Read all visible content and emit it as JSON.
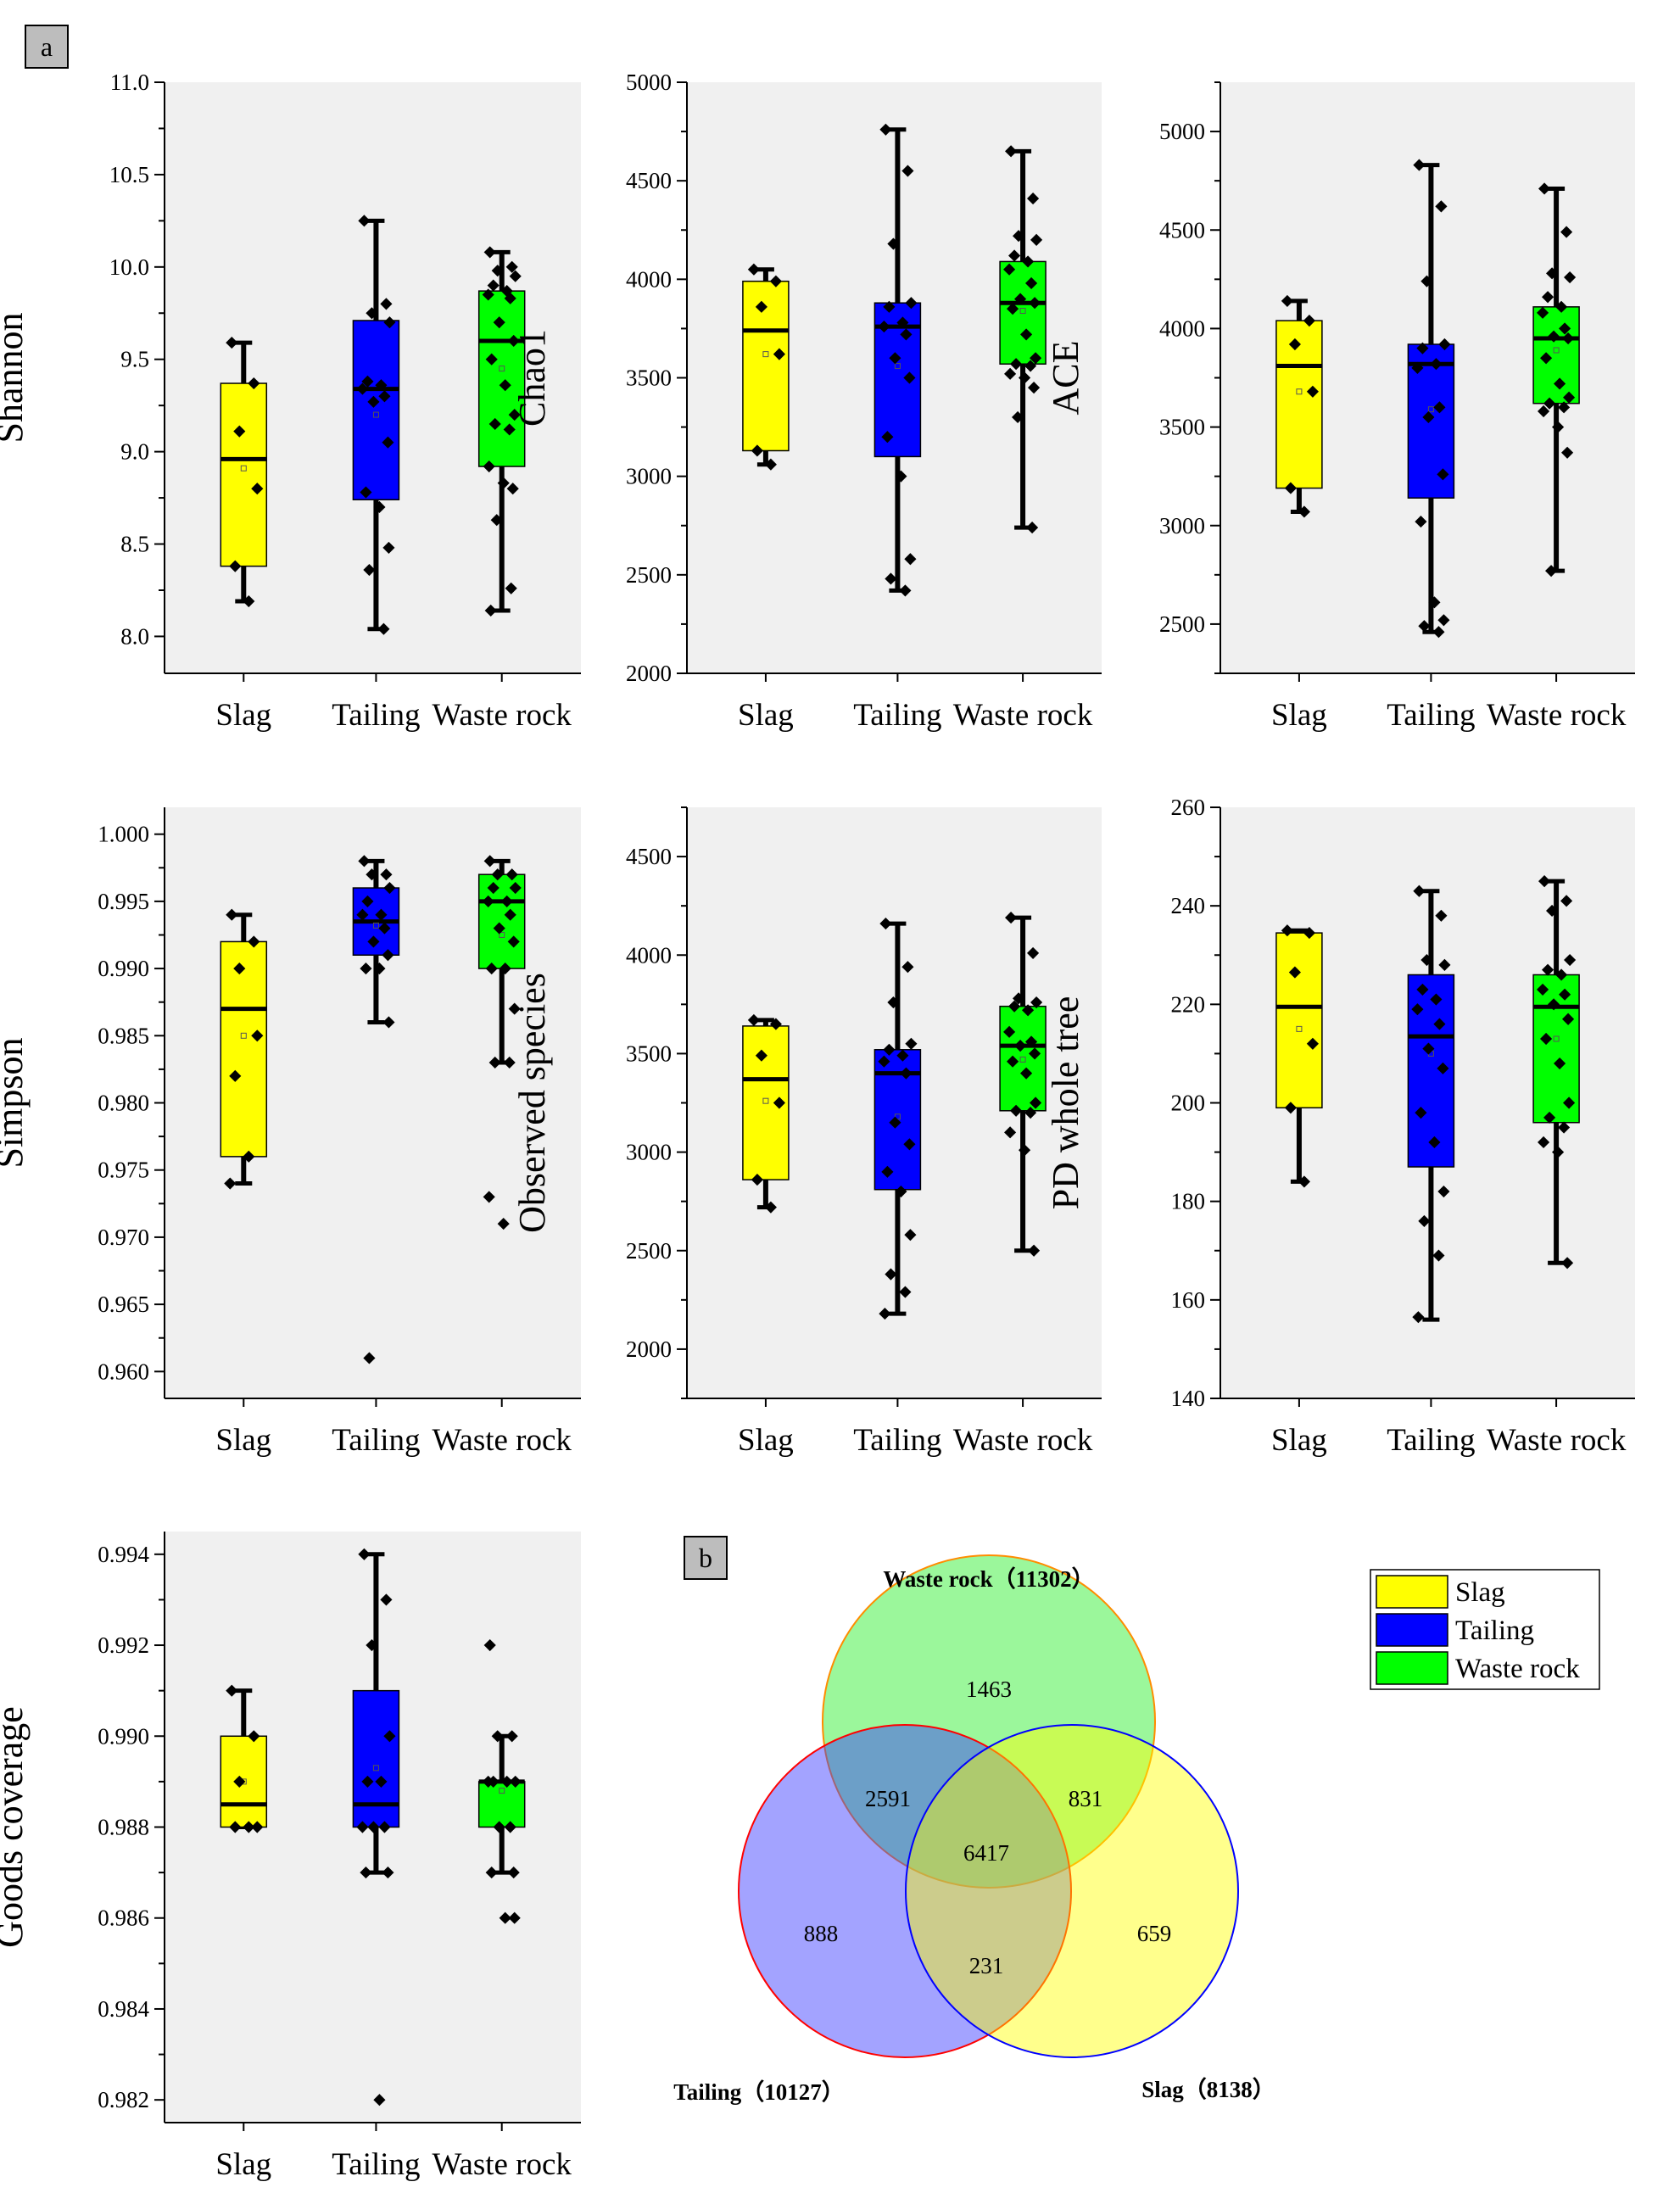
{
  "panel_labels": {
    "a": "a",
    "b": "b"
  },
  "colors": {
    "Slag": "#ffff00",
    "Tailing": "#0000ff",
    "Waste rock": "#00ff00",
    "plot_bg": "#f0f0f0"
  },
  "chart_data": [
    {
      "id": "shannon",
      "type": "box",
      "ylabel": "Shannon",
      "categories": [
        "Slag",
        "Tailing",
        "Waste rock"
      ],
      "ylim": [
        7.8,
        11.0
      ],
      "yticks": [
        8.0,
        8.5,
        9.0,
        9.5,
        10.0,
        10.5,
        11.0
      ],
      "tick_decimals": 1,
      "boxes": [
        {
          "min": 8.19,
          "q1": 8.38,
          "median": 8.96,
          "q3": 9.37,
          "max": 9.59,
          "mean": 8.91,
          "points": [
            9.59,
            9.37,
            9.11,
            8.8,
            8.38,
            8.19
          ]
        },
        {
          "min": 8.04,
          "q1": 8.74,
          "median": 9.34,
          "q3": 9.71,
          "max": 10.25,
          "mean": 9.2,
          "points": [
            10.25,
            9.8,
            9.75,
            9.7,
            9.38,
            9.36,
            9.34,
            9.3,
            9.27,
            9.05,
            8.78,
            8.7,
            8.48,
            8.36,
            8.04
          ]
        },
        {
          "min": 8.14,
          "q1": 8.92,
          "median": 9.6,
          "q3": 9.87,
          "max": 10.08,
          "mean": 9.45,
          "points": [
            10.08,
            10.0,
            9.98,
            9.95,
            9.9,
            9.87,
            9.85,
            9.83,
            9.7,
            9.6,
            9.5,
            9.36,
            9.2,
            9.15,
            9.12,
            8.92,
            8.83,
            8.8,
            8.63,
            8.26,
            8.14
          ]
        }
      ]
    },
    {
      "id": "chao1",
      "type": "box",
      "ylabel": "Chao1",
      "categories": [
        "Slag",
        "Tailing",
        "Waste rock"
      ],
      "ylim": [
        2000,
        5000
      ],
      "yticks": [
        2000,
        2500,
        3000,
        3500,
        4000,
        4500,
        5000
      ],
      "tick_decimals": 0,
      "boxes": [
        {
          "min": 3060,
          "q1": 3130,
          "median": 3740,
          "q3": 3990,
          "max": 4050,
          "mean": 3620,
          "points": [
            4050,
            3990,
            3860,
            3620,
            3130,
            3060
          ]
        },
        {
          "min": 2420,
          "q1": 3100,
          "median": 3760,
          "q3": 3880,
          "max": 4760,
          "mean": 3560,
          "points": [
            4760,
            4550,
            4180,
            3880,
            3860,
            3780,
            3760,
            3720,
            3600,
            3500,
            3200,
            3000,
            2580,
            2480,
            2420
          ]
        },
        {
          "min": 2740,
          "q1": 3570,
          "median": 3880,
          "q3": 4090,
          "max": 4650,
          "mean": 3840,
          "points": [
            4650,
            4410,
            4220,
            4200,
            4120,
            4090,
            4050,
            3980,
            3900,
            3880,
            3850,
            3720,
            3600,
            3570,
            3560,
            3520,
            3500,
            3450,
            3300,
            2740
          ]
        }
      ]
    },
    {
      "id": "ace",
      "type": "box",
      "ylabel": "ACE",
      "categories": [
        "Slag",
        "Tailing",
        "Waste rock"
      ],
      "ylim": [
        2250,
        5250
      ],
      "yticks": [
        2500,
        3000,
        3500,
        4000,
        4500,
        5000
      ],
      "tick_decimals": 0,
      "boxes": [
        {
          "min": 3070,
          "q1": 3190,
          "median": 3810,
          "q3": 4040,
          "max": 4140,
          "mean": 3680,
          "points": [
            4140,
            4040,
            3920,
            3680,
            3190,
            3070
          ]
        },
        {
          "min": 2460,
          "q1": 3140,
          "median": 3820,
          "q3": 3920,
          "max": 4830,
          "mean": 3590,
          "points": [
            4830,
            4620,
            4240,
            3920,
            3900,
            3820,
            3800,
            3600,
            3550,
            3260,
            3020,
            2610,
            2520,
            2490,
            2460
          ]
        },
        {
          "min": 2770,
          "q1": 3620,
          "median": 3950,
          "q3": 4110,
          "max": 4710,
          "mean": 3890,
          "points": [
            4710,
            4490,
            4280,
            4260,
            4160,
            4110,
            4080,
            4000,
            3960,
            3950,
            3850,
            3720,
            3650,
            3620,
            3600,
            3580,
            3500,
            3370,
            2770
          ]
        }
      ]
    },
    {
      "id": "simpson",
      "type": "box",
      "ylabel": "Simpson",
      "categories": [
        "Slag",
        "Tailing",
        "Waste rock"
      ],
      "ylim": [
        0.958,
        1.002
      ],
      "yticks": [
        0.96,
        0.965,
        0.97,
        0.975,
        0.98,
        0.985,
        0.99,
        0.995,
        1.0
      ],
      "tick_decimals": 3,
      "boxes": [
        {
          "min": 0.974,
          "q1": 0.976,
          "median": 0.987,
          "q3": 0.992,
          "max": 0.994,
          "mean": 0.985,
          "points": [
            0.994,
            0.992,
            0.99,
            0.985,
            0.982,
            0.976,
            0.974
          ]
        },
        {
          "min": 0.986,
          "q1": 0.991,
          "median": 0.9935,
          "q3": 0.996,
          "max": 0.998,
          "mean": 0.9932,
          "points": [
            0.998,
            0.997,
            0.997,
            0.996,
            0.995,
            0.994,
            0.994,
            0.993,
            0.992,
            0.991,
            0.99,
            0.99,
            0.986,
            0.961
          ]
        },
        {
          "min": 0.983,
          "q1": 0.99,
          "median": 0.995,
          "q3": 0.997,
          "max": 0.998,
          "mean": 0.9925,
          "points": [
            0.998,
            0.997,
            0.997,
            0.996,
            0.996,
            0.995,
            0.995,
            0.994,
            0.993,
            0.992,
            0.99,
            0.99,
            0.987,
            0.983,
            0.983,
            0.973,
            0.971
          ]
        }
      ]
    },
    {
      "id": "observed",
      "type": "box",
      "ylabel": "Observed species",
      "categories": [
        "Slag",
        "Tailing",
        "Waste rock"
      ],
      "ylim": [
        1750,
        4750
      ],
      "yticks": [
        2000,
        2500,
        3000,
        3500,
        4000,
        4500
      ],
      "tick_decimals": 0,
      "boxes": [
        {
          "min": 2720,
          "q1": 2860,
          "median": 3370,
          "q3": 3640,
          "max": 3670,
          "mean": 3260,
          "points": [
            3670,
            3650,
            3490,
            3250,
            2860,
            2720
          ]
        },
        {
          "min": 2180,
          "q1": 2810,
          "median": 3400,
          "q3": 3520,
          "max": 4160,
          "mean": 3180,
          "points": [
            4160,
            3940,
            3760,
            3550,
            3520,
            3490,
            3460,
            3400,
            3150,
            3040,
            2900,
            2800,
            2580,
            2380,
            2290,
            2180
          ]
        },
        {
          "min": 2500,
          "q1": 3210,
          "median": 3540,
          "q3": 3740,
          "max": 4190,
          "mean": 3470,
          "points": [
            4190,
            4010,
            3780,
            3760,
            3740,
            3720,
            3610,
            3560,
            3540,
            3500,
            3460,
            3400,
            3250,
            3210,
            3200,
            3100,
            3010,
            2500
          ]
        }
      ]
    },
    {
      "id": "pd",
      "type": "box",
      "ylabel": "PD whole tree",
      "categories": [
        "Slag",
        "Tailing",
        "Waste rock"
      ],
      "ylim": [
        140,
        260
      ],
      "yticks": [
        140,
        160,
        180,
        200,
        220,
        240,
        260
      ],
      "tick_decimals": 0,
      "boxes": [
        {
          "min": 184,
          "q1": 199,
          "median": 219.5,
          "q3": 234.5,
          "max": 235,
          "mean": 215,
          "points": [
            235,
            234.5,
            226.5,
            212,
            199,
            184
          ]
        },
        {
          "min": 156,
          "q1": 187,
          "median": 213.5,
          "q3": 226,
          "max": 243,
          "mean": 210,
          "points": [
            243,
            238,
            229,
            228,
            223,
            221,
            219,
            216,
            211,
            207,
            198,
            192,
            182,
            176,
            169,
            156.5
          ]
        },
        {
          "min": 167.5,
          "q1": 196,
          "median": 219.5,
          "q3": 226,
          "max": 245,
          "mean": 213,
          "points": [
            245,
            241,
            239,
            229,
            227,
            226,
            223,
            222,
            220,
            217,
            213,
            208,
            200,
            197,
            195,
            192,
            190,
            167.5
          ]
        }
      ]
    },
    {
      "id": "goods",
      "type": "box",
      "ylabel": "Goods coverage",
      "categories": [
        "Slag",
        "Tailing",
        "Waste rock"
      ],
      "ylim": [
        0.9815,
        0.9945
      ],
      "yticks": [
        0.982,
        0.984,
        0.986,
        0.988,
        0.99,
        0.992,
        0.994
      ],
      "tick_decimals": 3,
      "boxes": [
        {
          "min": 0.988,
          "q1": 0.988,
          "median": 0.9885,
          "q3": 0.99,
          "max": 0.991,
          "mean": 0.989,
          "points": [
            0.991,
            0.99,
            0.989,
            0.988,
            0.988,
            0.988
          ]
        },
        {
          "min": 0.987,
          "q1": 0.988,
          "median": 0.9885,
          "q3": 0.991,
          "max": 0.994,
          "mean": 0.9893,
          "points": [
            0.994,
            0.993,
            0.992,
            0.99,
            0.989,
            0.989,
            0.988,
            0.988,
            0.988,
            0.987,
            0.987,
            0.982
          ]
        },
        {
          "min": 0.987,
          "q1": 0.988,
          "median": 0.989,
          "q3": 0.989,
          "max": 0.99,
          "mean": 0.9888,
          "points": [
            0.992,
            0.99,
            0.99,
            0.989,
            0.989,
            0.989,
            0.989,
            0.988,
            0.988,
            0.987,
            0.987,
            0.986,
            0.986
          ]
        }
      ]
    },
    {
      "id": "venn",
      "type": "venn",
      "sets": [
        {
          "name": "Waste rock",
          "label": "Waste rock（11302）",
          "total": 11302
        },
        {
          "name": "Tailing",
          "label": "Tailing（10127）",
          "total": 10127
        },
        {
          "name": "Slag",
          "label": "Slag（8138）",
          "total": 8138
        }
      ],
      "regions": {
        "waste_only": "1463",
        "tailing_only": "888",
        "slag_only": "659",
        "waste_tailing": "2591",
        "waste_slag": "831",
        "tailing_slag": "231",
        "all": "6417"
      }
    }
  ],
  "legend": {
    "items": [
      "Slag",
      "Tailing",
      "Waste rock"
    ]
  }
}
